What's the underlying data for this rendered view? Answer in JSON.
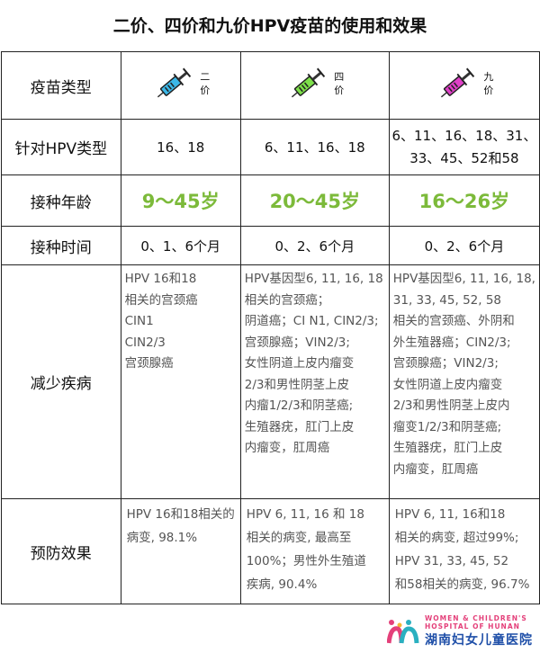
{
  "title": "二价、四价和九价HPV疫苗的使用和效果",
  "rows": {
    "type": {
      "label": "疫苗类型",
      "vaccines": [
        {
          "top": "二",
          "bottom": "价",
          "color": "#3bb8e8"
        },
        {
          "top": "四",
          "bottom": "价",
          "color": "#7ee04a"
        },
        {
          "top": "九",
          "bottom": "价",
          "color": "#e040c8"
        }
      ]
    },
    "hpv": {
      "label": "针对HPV类型",
      "values": [
        [
          "16、18"
        ],
        [
          "6、11、16、18"
        ],
        [
          "6、11、16、18、31、",
          "33、45、52和58"
        ]
      ]
    },
    "age": {
      "label": "接种年龄",
      "values": [
        "9～45岁",
        "20～45岁",
        "16～26岁"
      ],
      "color": "#7cba3a"
    },
    "schedule": {
      "label": "接种时间",
      "values": [
        "0、1、6个月",
        "0、2、6个月",
        "0、2、6个月"
      ]
    },
    "diseases": {
      "label": "减少疾病",
      "values": [
        [
          "HPV 16和18",
          "相关的宫颈癌",
          "CIN1",
          "CIN2/3",
          "宫颈腺癌"
        ],
        [
          "HPV基因型6, 11, 16, 18",
          "相关的宫颈癌；",
          "阴道癌；CI N1, CIN2/3;",
          "宫颈腺癌；VIN2/3;",
          "女性阴道上皮内瘤变",
          "2/3和男性阴茎上皮",
          "内瘤1/2/3和阴茎癌;",
          "生殖器疣，肛门上皮",
          "内瘤变，肛周癌"
        ],
        [
          "HPV基因型6, 11, 16, 18,",
          "31, 33, 45, 52,  58",
          "相关的宫颈癌、外阴和",
          "外生殖器癌；CIN2/3;",
          "宫颈腺癌；VIN2/3;",
          "女性阴道上皮内瘤变",
          "2/3和男性阴茎上皮内",
          "瘤变1/2/3和阴茎癌;",
          "生殖器疣，肛门上皮",
          "内瘤变，肛周癌"
        ]
      ]
    },
    "effect": {
      "label": "预防效果",
      "values": [
        [
          "HPV 16和18相关的",
          "病变, 98.1%"
        ],
        [
          "HPV 6, 11, 16 和 18",
          "相关的病变, 最高至",
          "100%；男性外生殖道",
          "疾病, 90.4%"
        ],
        [
          "HPV 6, 11, 16和18",
          "相关的病变, 超过99%;",
          "HPV 31, 33, 45, 52",
          "和58相关的病变, 96.7%"
        ]
      ]
    }
  },
  "logo": {
    "en1": "WOMEN & CHILDREN'S",
    "en2": "HOSPITAL OF HUNAN",
    "cn": "湖南妇女儿童医院"
  }
}
